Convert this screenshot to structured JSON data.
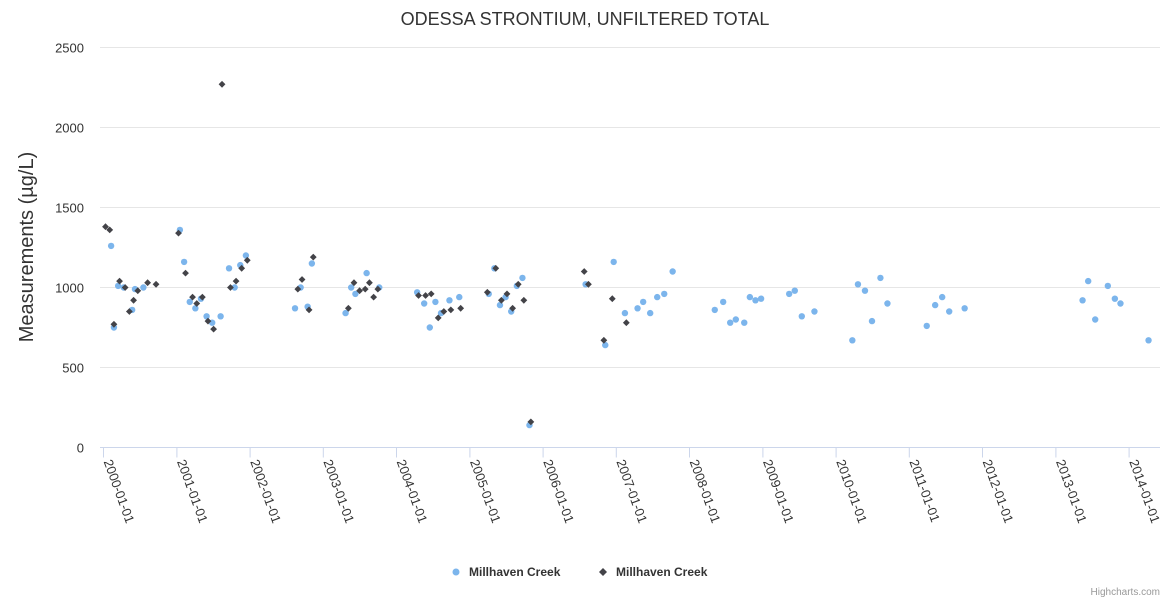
{
  "chart_data": {
    "type": "scatter",
    "title": "ODESSA STRONTIUM, UNFILTERED TOTAL",
    "ylabel": "Measurements (µg/L)",
    "xlabel": "",
    "ylim": [
      0,
      2500
    ],
    "yticks": [
      "0",
      "500",
      "1000",
      "1500",
      "2000",
      "2500"
    ],
    "xticks": [
      "2000-01-01",
      "2001-01-01",
      "2002-01-01",
      "2003-01-01",
      "2004-01-01",
      "2005-01-01",
      "2006-01-01",
      "2007-01-01",
      "2008-01-01",
      "2009-01-01",
      "2010-01-01",
      "2011-01-01",
      "2012-01-01",
      "2013-01-01",
      "2014-01-01"
    ],
    "grid": true,
    "legend_position": "bottom-center",
    "credits": "Highcharts.com",
    "series": [
      {
        "name": "Millhaven Creek",
        "marker": "circle",
        "color": "#7cb5ec",
        "points": [
          [
            "2000-02-08",
            1260
          ],
          [
            "2000-02-22",
            750
          ],
          [
            "2000-03-14",
            1010
          ],
          [
            "2000-04-11",
            1000
          ],
          [
            "2000-05-23",
            860
          ],
          [
            "2000-06-06",
            990
          ],
          [
            "2000-07-18",
            1000
          ],
          [
            "2001-01-16",
            1360
          ],
          [
            "2001-02-06",
            1160
          ],
          [
            "2001-03-06",
            910
          ],
          [
            "2001-04-03",
            870
          ],
          [
            "2001-05-01",
            930
          ],
          [
            "2001-05-29",
            820
          ],
          [
            "2001-06-26",
            780
          ],
          [
            "2001-08-07",
            820
          ],
          [
            "2001-09-18",
            1120
          ],
          [
            "2001-10-16",
            1000
          ],
          [
            "2001-11-13",
            1140
          ],
          [
            "2001-12-11",
            1200
          ],
          [
            "2002-08-13",
            870
          ],
          [
            "2002-09-10",
            1000
          ],
          [
            "2002-10-15",
            880
          ],
          [
            "2002-11-05",
            1150
          ],
          [
            "2003-04-22",
            840
          ],
          [
            "2003-05-20",
            1000
          ],
          [
            "2003-06-10",
            960
          ],
          [
            "2003-08-05",
            1090
          ],
          [
            "2003-10-07",
            1000
          ],
          [
            "2004-04-13",
            970
          ],
          [
            "2004-05-18",
            900
          ],
          [
            "2004-06-15",
            750
          ],
          [
            "2004-07-13",
            910
          ],
          [
            "2004-08-10",
            840
          ],
          [
            "2004-09-21",
            920
          ],
          [
            "2004-11-09",
            940
          ],
          [
            "2005-04-05",
            960
          ],
          [
            "2005-05-03",
            1120
          ],
          [
            "2005-05-31",
            890
          ],
          [
            "2005-06-28",
            940
          ],
          [
            "2005-07-26",
            850
          ],
          [
            "2005-08-23",
            1010
          ],
          [
            "2005-09-20",
            1060
          ],
          [
            "2005-10-25",
            140
          ],
          [
            "2006-08-01",
            1020
          ],
          [
            "2006-11-07",
            640
          ],
          [
            "2006-12-19",
            1160
          ],
          [
            "2007-02-13",
            840
          ],
          [
            "2007-04-17",
            870
          ],
          [
            "2007-05-15",
            910
          ],
          [
            "2007-06-19",
            840
          ],
          [
            "2007-07-24",
            940
          ],
          [
            "2007-08-28",
            960
          ],
          [
            "2007-10-09",
            1100
          ],
          [
            "2008-05-06",
            860
          ],
          [
            "2008-06-17",
            910
          ],
          [
            "2008-07-22",
            780
          ],
          [
            "2008-08-19",
            800
          ],
          [
            "2008-09-30",
            780
          ],
          [
            "2008-10-28",
            940
          ],
          [
            "2008-11-25",
            920
          ],
          [
            "2008-12-23",
            930
          ],
          [
            "2009-05-12",
            960
          ],
          [
            "2009-06-09",
            980
          ],
          [
            "2009-07-14",
            820
          ],
          [
            "2009-09-15",
            850
          ],
          [
            "2010-03-23",
            670
          ],
          [
            "2010-04-20",
            1020
          ],
          [
            "2010-05-25",
            980
          ],
          [
            "2010-06-29",
            790
          ],
          [
            "2010-08-10",
            1060
          ],
          [
            "2010-09-14",
            900
          ],
          [
            "2011-03-29",
            760
          ],
          [
            "2011-05-10",
            890
          ],
          [
            "2011-06-14",
            940
          ],
          [
            "2011-07-19",
            850
          ],
          [
            "2011-10-04",
            870
          ],
          [
            "2013-05-14",
            920
          ],
          [
            "2013-06-11",
            1040
          ],
          [
            "2013-07-16",
            800
          ],
          [
            "2013-09-17",
            1010
          ],
          [
            "2013-10-22",
            930
          ],
          [
            "2013-11-19",
            900
          ],
          [
            "2014-04-08",
            670
          ]
        ]
      },
      {
        "name": "Millhaven Creek",
        "marker": "diamond",
        "color": "#434348",
        "points": [
          [
            "2000-01-11",
            1380
          ],
          [
            "2000-02-01",
            1360
          ],
          [
            "2000-02-22",
            770
          ],
          [
            "2000-03-21",
            1040
          ],
          [
            "2000-04-18",
            1000
          ],
          [
            "2000-05-09",
            850
          ],
          [
            "2000-05-30",
            920
          ],
          [
            "2000-06-20",
            980
          ],
          [
            "2000-08-08",
            1030
          ],
          [
            "2000-09-19",
            1020
          ],
          [
            "2001-01-09",
            1340
          ],
          [
            "2001-02-13",
            1090
          ],
          [
            "2001-03-20",
            940
          ],
          [
            "2001-04-10",
            900
          ],
          [
            "2001-05-08",
            940
          ],
          [
            "2001-06-05",
            790
          ],
          [
            "2001-07-03",
            740
          ],
          [
            "2001-08-14",
            2270
          ],
          [
            "2001-09-25",
            1000
          ],
          [
            "2001-10-23",
            1040
          ],
          [
            "2001-11-20",
            1120
          ],
          [
            "2001-12-18",
            1170
          ],
          [
            "2002-08-27",
            990
          ],
          [
            "2002-09-17",
            1050
          ],
          [
            "2002-10-22",
            860
          ],
          [
            "2002-11-12",
            1190
          ],
          [
            "2003-05-06",
            870
          ],
          [
            "2003-06-03",
            1030
          ],
          [
            "2003-07-01",
            980
          ],
          [
            "2003-07-29",
            990
          ],
          [
            "2003-08-19",
            1030
          ],
          [
            "2003-09-09",
            940
          ],
          [
            "2003-09-30",
            990
          ],
          [
            "2004-04-20",
            950
          ],
          [
            "2004-05-25",
            950
          ],
          [
            "2004-06-22",
            960
          ],
          [
            "2004-07-27",
            810
          ],
          [
            "2004-08-24",
            850
          ],
          [
            "2004-09-28",
            860
          ],
          [
            "2004-11-16",
            870
          ],
          [
            "2005-03-29",
            970
          ],
          [
            "2005-05-10",
            1120
          ],
          [
            "2005-06-07",
            920
          ],
          [
            "2005-07-05",
            960
          ],
          [
            "2005-08-02",
            870
          ],
          [
            "2005-08-30",
            1020
          ],
          [
            "2005-09-27",
            920
          ],
          [
            "2005-11-01",
            160
          ],
          [
            "2006-07-25",
            1100
          ],
          [
            "2006-08-15",
            1020
          ],
          [
            "2006-10-31",
            670
          ],
          [
            "2006-12-12",
            930
          ],
          [
            "2007-02-20",
            780
          ]
        ]
      }
    ]
  }
}
